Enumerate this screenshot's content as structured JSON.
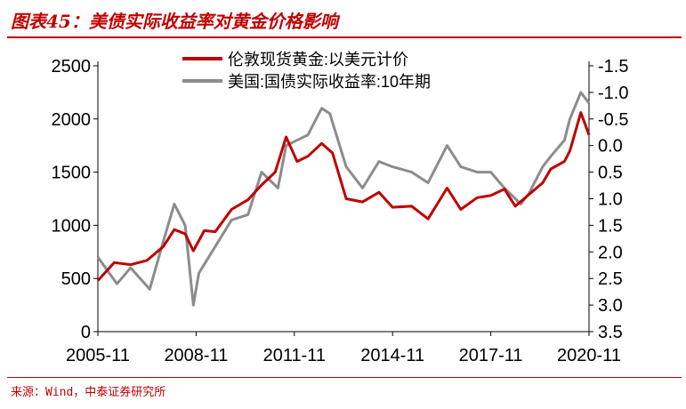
{
  "header": {
    "title": "图表45：美债实际收益率对黄金价格影响"
  },
  "footer": {
    "source": "来源：Wind，中泰证券研究所"
  },
  "colors": {
    "accent": "#c00000",
    "gold_series": "#c00000",
    "yield_series": "#8c8c8c"
  },
  "chart_data": {
    "type": "line",
    "title": "",
    "x_ticks": [
      "2005-11",
      "2008-11",
      "2011-11",
      "2014-11",
      "2017-11",
      "2020-11"
    ],
    "x_range": [
      "2005-11",
      "2020-11"
    ],
    "y_left": {
      "ticks": [
        0,
        500,
        1000,
        1500,
        2000,
        2500
      ],
      "lim": [
        0,
        2500
      ]
    },
    "y_right": {
      "ticks": [
        3.5,
        3.0,
        2.5,
        2.0,
        1.5,
        1.0,
        0.5,
        0.0,
        -0.5,
        -1.0,
        -1.5
      ],
      "tick_labels": [
        "3.5",
        "3.0",
        "2.5",
        "2.0",
        "1.5",
        "1.0",
        "0.5",
        "0.0",
        "-0.5",
        "-1.0",
        "-1.5"
      ],
      "lim": [
        3.5,
        -1.5
      ],
      "inverted": true
    },
    "legend": {
      "placement": "top-center"
    },
    "series": [
      {
        "name": "伦敦现货黄金:以美元计价",
        "axis": "left",
        "color": "#c00000",
        "points": [
          [
            "2005-11",
            480
          ],
          [
            "2006-05",
            650
          ],
          [
            "2006-11",
            630
          ],
          [
            "2007-05",
            670
          ],
          [
            "2007-11",
            800
          ],
          [
            "2008-03",
            960
          ],
          [
            "2008-07",
            920
          ],
          [
            "2008-10",
            760
          ],
          [
            "2009-02",
            950
          ],
          [
            "2009-06",
            940
          ],
          [
            "2009-12",
            1150
          ],
          [
            "2010-06",
            1240
          ],
          [
            "2010-11",
            1380
          ],
          [
            "2011-04",
            1500
          ],
          [
            "2011-08",
            1830
          ],
          [
            "2011-12",
            1600
          ],
          [
            "2012-04",
            1650
          ],
          [
            "2012-09",
            1770
          ],
          [
            "2013-01",
            1680
          ],
          [
            "2013-06",
            1250
          ],
          [
            "2013-12",
            1220
          ],
          [
            "2014-06",
            1310
          ],
          [
            "2014-11",
            1170
          ],
          [
            "2015-06",
            1180
          ],
          [
            "2015-12",
            1060
          ],
          [
            "2016-07",
            1350
          ],
          [
            "2016-12",
            1150
          ],
          [
            "2017-06",
            1260
          ],
          [
            "2017-11",
            1280
          ],
          [
            "2018-04",
            1340
          ],
          [
            "2018-08",
            1180
          ],
          [
            "2019-01",
            1290
          ],
          [
            "2019-06",
            1400
          ],
          [
            "2019-09",
            1530
          ],
          [
            "2020-02",
            1600
          ],
          [
            "2020-04",
            1700
          ],
          [
            "2020-08",
            2060
          ],
          [
            "2020-11",
            1850
          ]
        ]
      },
      {
        "name": "美国:国债实际收益率:10年期",
        "axis": "right",
        "color": "#8c8c8c",
        "points": [
          [
            "2005-11",
            2.1
          ],
          [
            "2006-06",
            2.6
          ],
          [
            "2006-11",
            2.3
          ],
          [
            "2007-06",
            2.7
          ],
          [
            "2007-11",
            1.8
          ],
          [
            "2008-03",
            1.1
          ],
          [
            "2008-07",
            1.5
          ],
          [
            "2008-10",
            3.0
          ],
          [
            "2008-12",
            2.4
          ],
          [
            "2009-06",
            1.9
          ],
          [
            "2009-12",
            1.4
          ],
          [
            "2010-06",
            1.3
          ],
          [
            "2010-11",
            0.5
          ],
          [
            "2011-05",
            0.8
          ],
          [
            "2011-08",
            0.0
          ],
          [
            "2011-12",
            -0.1
          ],
          [
            "2012-04",
            -0.2
          ],
          [
            "2012-09",
            -0.7
          ],
          [
            "2012-12",
            -0.6
          ],
          [
            "2013-06",
            0.4
          ],
          [
            "2013-12",
            0.8
          ],
          [
            "2014-06",
            0.3
          ],
          [
            "2014-11",
            0.4
          ],
          [
            "2015-06",
            0.5
          ],
          [
            "2015-12",
            0.7
          ],
          [
            "2016-07",
            0.0
          ],
          [
            "2016-12",
            0.4
          ],
          [
            "2017-06",
            0.5
          ],
          [
            "2017-11",
            0.5
          ],
          [
            "2018-04",
            0.8
          ],
          [
            "2018-10",
            1.1
          ],
          [
            "2019-01",
            0.9
          ],
          [
            "2019-06",
            0.4
          ],
          [
            "2019-09",
            0.2
          ],
          [
            "2020-02",
            -0.1
          ],
          [
            "2020-04",
            -0.5
          ],
          [
            "2020-08",
            -1.0
          ],
          [
            "2020-11",
            -0.8
          ]
        ]
      }
    ]
  }
}
